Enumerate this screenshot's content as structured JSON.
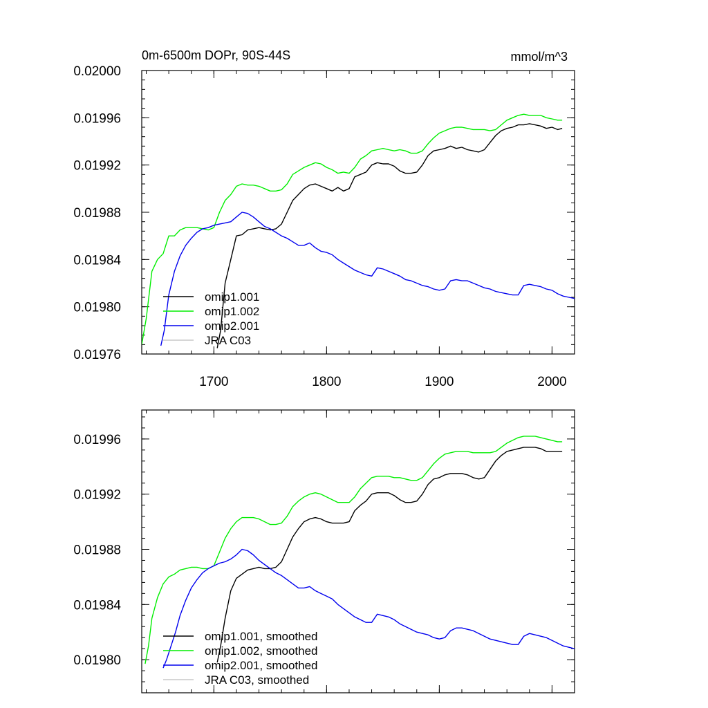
{
  "chart_data": [
    {
      "type": "line",
      "title": "0m-6500m DOPr, 90S-44S",
      "units": "mmol/m^3",
      "xlim": [
        1636,
        2020
      ],
      "ylim": [
        0.01976,
        0.02
      ],
      "x_ticks": [
        1700,
        1800,
        1900,
        2000
      ],
      "x_tick_labels": [
        "1700",
        "1800",
        "1900",
        "2000"
      ],
      "y_ticks": [
        0.01976,
        0.0198,
        0.01984,
        0.01988,
        0.01992,
        0.01996,
        0.02
      ],
      "y_tick_labels": [
        "0.01976",
        "0.01980",
        "0.01984",
        "0.01988",
        "0.01992",
        "0.01996",
        "0.02000"
      ],
      "grid": false,
      "legend_position": "bottom-left",
      "smoothed": false,
      "series": [
        {
          "name": "omip1.001",
          "color": "#000000",
          "x": [
            1703,
            1706,
            1710,
            1715,
            1720,
            1725,
            1730,
            1735,
            1740,
            1745,
            1750,
            1755,
            1760,
            1765,
            1770,
            1775,
            1780,
            1785,
            1790,
            1795,
            1800,
            1805,
            1810,
            1815,
            1820,
            1825,
            1830,
            1835,
            1840,
            1845,
            1850,
            1855,
            1860,
            1865,
            1870,
            1875,
            1880,
            1885,
            1890,
            1895,
            1900,
            1905,
            1910,
            1915,
            1920,
            1925,
            1930,
            1935,
            1940,
            1945,
            1950,
            1955,
            1960,
            1965,
            1970,
            1975,
            1980,
            1985,
            1990,
            1995,
            2000,
            2005,
            2009
          ],
          "y": [
            0.019765,
            0.01978,
            0.01982,
            0.01984,
            0.01986,
            0.019861,
            0.019865,
            0.019866,
            0.019867,
            0.019866,
            0.019865,
            0.019866,
            0.01987,
            0.01988,
            0.01989,
            0.019895,
            0.0199,
            0.019903,
            0.019904,
            0.019902,
            0.0199,
            0.019898,
            0.019901,
            0.019898,
            0.0199,
            0.01991,
            0.019912,
            0.019914,
            0.01992,
            0.019922,
            0.019921,
            0.019921,
            0.019919,
            0.019915,
            0.019913,
            0.019913,
            0.019914,
            0.01992,
            0.019928,
            0.019932,
            0.019933,
            0.019934,
            0.019936,
            0.019934,
            0.019935,
            0.019933,
            0.019932,
            0.019931,
            0.019933,
            0.019939,
            0.019945,
            0.019949,
            0.019951,
            0.019952,
            0.019954,
            0.019954,
            0.019955,
            0.019954,
            0.019953,
            0.019951,
            0.019952,
            0.01995,
            0.019951
          ]
        },
        {
          "name": "omip1.002",
          "color": "#00ee00",
          "x": [
            1636,
            1640,
            1645,
            1650,
            1655,
            1660,
            1665,
            1670,
            1675,
            1680,
            1685,
            1690,
            1695,
            1700,
            1705,
            1710,
            1715,
            1720,
            1725,
            1730,
            1735,
            1740,
            1745,
            1750,
            1755,
            1760,
            1765,
            1770,
            1775,
            1780,
            1785,
            1790,
            1795,
            1800,
            1805,
            1810,
            1815,
            1820,
            1825,
            1830,
            1835,
            1840,
            1845,
            1850,
            1855,
            1860,
            1865,
            1870,
            1875,
            1880,
            1885,
            1890,
            1895,
            1900,
            1905,
            1910,
            1915,
            1920,
            1925,
            1930,
            1935,
            1940,
            1945,
            1950,
            1955,
            1960,
            1965,
            1970,
            1975,
            1980,
            1985,
            1990,
            1995,
            2000,
            2005,
            2009
          ],
          "y": [
            0.019768,
            0.01979,
            0.01983,
            0.01984,
            0.019845,
            0.01986,
            0.01986,
            0.019865,
            0.019867,
            0.019867,
            0.019867,
            0.019866,
            0.019865,
            0.019867,
            0.01988,
            0.01989,
            0.019895,
            0.019902,
            0.019904,
            0.019903,
            0.019903,
            0.019902,
            0.0199,
            0.019898,
            0.019898,
            0.019899,
            0.019904,
            0.019912,
            0.019915,
            0.019918,
            0.01992,
            0.019922,
            0.019921,
            0.019918,
            0.019916,
            0.019913,
            0.019914,
            0.019913,
            0.019918,
            0.019925,
            0.019928,
            0.019932,
            0.019933,
            0.019934,
            0.019933,
            0.019932,
            0.019933,
            0.019932,
            0.01993,
            0.01993,
            0.019932,
            0.019938,
            0.019943,
            0.019947,
            0.019949,
            0.019951,
            0.019952,
            0.019952,
            0.019951,
            0.01995,
            0.01995,
            0.01995,
            0.019949,
            0.01995,
            0.019954,
            0.019958,
            0.01996,
            0.019962,
            0.019963,
            0.019962,
            0.019962,
            0.019962,
            0.01996,
            0.019959,
            0.019958,
            0.019958
          ]
        },
        {
          "name": "omip2.001",
          "color": "#0000ee",
          "x": [
            1653,
            1656,
            1660,
            1665,
            1670,
            1675,
            1680,
            1685,
            1690,
            1695,
            1700,
            1705,
            1710,
            1715,
            1720,
            1725,
            1730,
            1735,
            1740,
            1745,
            1750,
            1755,
            1760,
            1765,
            1770,
            1775,
            1780,
            1785,
            1790,
            1795,
            1800,
            1805,
            1810,
            1815,
            1820,
            1825,
            1830,
            1835,
            1840,
            1845,
            1850,
            1855,
            1860,
            1865,
            1870,
            1875,
            1880,
            1885,
            1890,
            1895,
            1900,
            1905,
            1910,
            1915,
            1920,
            1925,
            1930,
            1935,
            1940,
            1945,
            1950,
            1955,
            1960,
            1965,
            1970,
            1975,
            1980,
            1985,
            1990,
            1995,
            2000,
            2005,
            2010,
            2015,
            2020
          ],
          "y": [
            0.019767,
            0.01978,
            0.01981,
            0.01983,
            0.019843,
            0.019852,
            0.019858,
            0.019863,
            0.019866,
            0.019867,
            0.019869,
            0.01987,
            0.019871,
            0.019872,
            0.019876,
            0.01988,
            0.019879,
            0.019876,
            0.019872,
            0.019868,
            0.019866,
            0.019863,
            0.01986,
            0.019858,
            0.019855,
            0.019852,
            0.019852,
            0.019854,
            0.01985,
            0.019847,
            0.019846,
            0.019844,
            0.01984,
            0.019837,
            0.019834,
            0.019831,
            0.019829,
            0.019827,
            0.019826,
            0.019833,
            0.019832,
            0.01983,
            0.019828,
            0.019826,
            0.019823,
            0.019822,
            0.01982,
            0.019818,
            0.019817,
            0.019815,
            0.019814,
            0.019815,
            0.019822,
            0.019823,
            0.019822,
            0.019822,
            0.01982,
            0.019818,
            0.019816,
            0.019815,
            0.019813,
            0.019812,
            0.019811,
            0.01981,
            0.01981,
            0.019818,
            0.019819,
            0.019818,
            0.019817,
            0.019815,
            0.019814,
            0.019811,
            0.019809,
            0.019808,
            0.019807
          ]
        },
        {
          "name": "JRA C03",
          "color": "#c8c8c8",
          "x": [],
          "y": []
        }
      ]
    },
    {
      "type": "line",
      "title": "",
      "units": "",
      "xlim": [
        1636,
        2020
      ],
      "ylim": [
        0.019776,
        0.019981
      ],
      "x_ticks": [
        1700,
        1800,
        1900,
        2000
      ],
      "x_tick_labels": [],
      "y_ticks": [
        0.0198,
        0.01984,
        0.01988,
        0.01992,
        0.01996
      ],
      "y_tick_labels": [
        "0.01980",
        "0.01984",
        "0.01988",
        "0.01992",
        "0.01996"
      ],
      "grid": false,
      "legend_position": "bottom-left",
      "smoothed": true,
      "series": [
        {
          "name": "omip1.001, smoothed",
          "color": "#000000",
          "x": [
            1703,
            1706,
            1710,
            1715,
            1720,
            1725,
            1730,
            1735,
            1740,
            1745,
            1750,
            1755,
            1760,
            1765,
            1770,
            1775,
            1780,
            1785,
            1790,
            1795,
            1800,
            1805,
            1810,
            1815,
            1820,
            1825,
            1830,
            1835,
            1840,
            1845,
            1850,
            1855,
            1860,
            1865,
            1870,
            1875,
            1880,
            1885,
            1890,
            1895,
            1900,
            1905,
            1910,
            1915,
            1920,
            1925,
            1930,
            1935,
            1940,
            1945,
            1950,
            1955,
            1960,
            1965,
            1970,
            1975,
            1980,
            1985,
            1990,
            1995,
            2000,
            2005,
            2009
          ],
          "y": [
            0.019798,
            0.01981,
            0.01983,
            0.01985,
            0.019859,
            0.019862,
            0.019865,
            0.019866,
            0.019867,
            0.019866,
            0.019866,
            0.019867,
            0.019871,
            0.01988,
            0.019889,
            0.019895,
            0.0199,
            0.019902,
            0.019903,
            0.019902,
            0.0199,
            0.019899,
            0.019899,
            0.019899,
            0.0199,
            0.019908,
            0.019912,
            0.019915,
            0.01992,
            0.019921,
            0.019921,
            0.019921,
            0.019919,
            0.019916,
            0.019914,
            0.019914,
            0.019915,
            0.01992,
            0.019927,
            0.019931,
            0.019932,
            0.019934,
            0.019935,
            0.019935,
            0.019935,
            0.019934,
            0.019932,
            0.019931,
            0.019932,
            0.019938,
            0.019944,
            0.019948,
            0.019951,
            0.019952,
            0.019953,
            0.019954,
            0.019954,
            0.019954,
            0.019953,
            0.019951,
            0.019951,
            0.019951,
            0.019951
          ]
        },
        {
          "name": "omip1.002, smoothed",
          "color": "#00ee00",
          "x": [
            1639,
            1642,
            1645,
            1650,
            1655,
            1660,
            1665,
            1670,
            1675,
            1680,
            1685,
            1690,
            1695,
            1700,
            1705,
            1710,
            1715,
            1720,
            1725,
            1730,
            1735,
            1740,
            1745,
            1750,
            1755,
            1760,
            1765,
            1770,
            1775,
            1780,
            1785,
            1790,
            1795,
            1800,
            1805,
            1810,
            1815,
            1820,
            1825,
            1830,
            1835,
            1840,
            1845,
            1850,
            1855,
            1860,
            1865,
            1870,
            1875,
            1880,
            1885,
            1890,
            1895,
            1900,
            1905,
            1910,
            1915,
            1920,
            1925,
            1930,
            1935,
            1940,
            1945,
            1950,
            1955,
            1960,
            1965,
            1970,
            1975,
            1980,
            1985,
            1990,
            1995,
            2000,
            2005,
            2009
          ],
          "y": [
            0.019797,
            0.01981,
            0.01983,
            0.019845,
            0.019855,
            0.01986,
            0.019862,
            0.019865,
            0.019866,
            0.019867,
            0.019867,
            0.019866,
            0.019866,
            0.019868,
            0.019878,
            0.019888,
            0.019895,
            0.0199,
            0.019903,
            0.019903,
            0.019903,
            0.019902,
            0.0199,
            0.019898,
            0.019898,
            0.019899,
            0.019904,
            0.019911,
            0.019915,
            0.019918,
            0.01992,
            0.019921,
            0.01992,
            0.019918,
            0.019916,
            0.019914,
            0.019914,
            0.019914,
            0.019918,
            0.019924,
            0.019928,
            0.019932,
            0.019933,
            0.019933,
            0.019933,
            0.019932,
            0.019932,
            0.019931,
            0.01993,
            0.01993,
            0.019932,
            0.019937,
            0.019942,
            0.019946,
            0.019949,
            0.01995,
            0.019951,
            0.019951,
            0.019951,
            0.01995,
            0.01995,
            0.01995,
            0.01995,
            0.019951,
            0.019954,
            0.019957,
            0.019959,
            0.019961,
            0.019962,
            0.019962,
            0.019962,
            0.019961,
            0.01996,
            0.019959,
            0.019958,
            0.019958
          ]
        },
        {
          "name": "omip2.001, smoothed",
          "color": "#0000ee",
          "x": [
            1655,
            1658,
            1662,
            1666,
            1670,
            1675,
            1680,
            1685,
            1690,
            1695,
            1700,
            1705,
            1710,
            1715,
            1720,
            1725,
            1730,
            1735,
            1740,
            1745,
            1750,
            1755,
            1760,
            1765,
            1770,
            1775,
            1780,
            1785,
            1790,
            1795,
            1800,
            1805,
            1810,
            1815,
            1820,
            1825,
            1830,
            1835,
            1840,
            1845,
            1850,
            1855,
            1860,
            1865,
            1870,
            1875,
            1880,
            1885,
            1890,
            1895,
            1900,
            1905,
            1910,
            1915,
            1920,
            1925,
            1930,
            1935,
            1940,
            1945,
            1950,
            1955,
            1960,
            1965,
            1970,
            1975,
            1980,
            1985,
            1990,
            1995,
            2000,
            2005,
            2010,
            2015,
            2020
          ],
          "y": [
            0.019794,
            0.0198,
            0.01981,
            0.01982,
            0.019832,
            0.019843,
            0.019852,
            0.019858,
            0.019863,
            0.019866,
            0.019868,
            0.01987,
            0.019871,
            0.019873,
            0.019876,
            0.01988,
            0.019879,
            0.019876,
            0.019872,
            0.019869,
            0.019866,
            0.019863,
            0.019861,
            0.019858,
            0.019855,
            0.019852,
            0.019852,
            0.019853,
            0.01985,
            0.019848,
            0.019846,
            0.019844,
            0.01984,
            0.019837,
            0.019834,
            0.019831,
            0.019829,
            0.019827,
            0.019827,
            0.019833,
            0.019832,
            0.019831,
            0.019829,
            0.019826,
            0.019824,
            0.019822,
            0.01982,
            0.019819,
            0.019818,
            0.019816,
            0.019815,
            0.019816,
            0.019821,
            0.019823,
            0.019823,
            0.019822,
            0.019821,
            0.019819,
            0.019817,
            0.019815,
            0.019814,
            0.019813,
            0.019812,
            0.019811,
            0.019811,
            0.019817,
            0.019819,
            0.019818,
            0.019817,
            0.019816,
            0.019814,
            0.019812,
            0.01981,
            0.019809,
            0.019808
          ]
        },
        {
          "name": "JRA C03, smoothed",
          "color": "#c8c8c8",
          "x": [],
          "y": []
        }
      ]
    }
  ]
}
